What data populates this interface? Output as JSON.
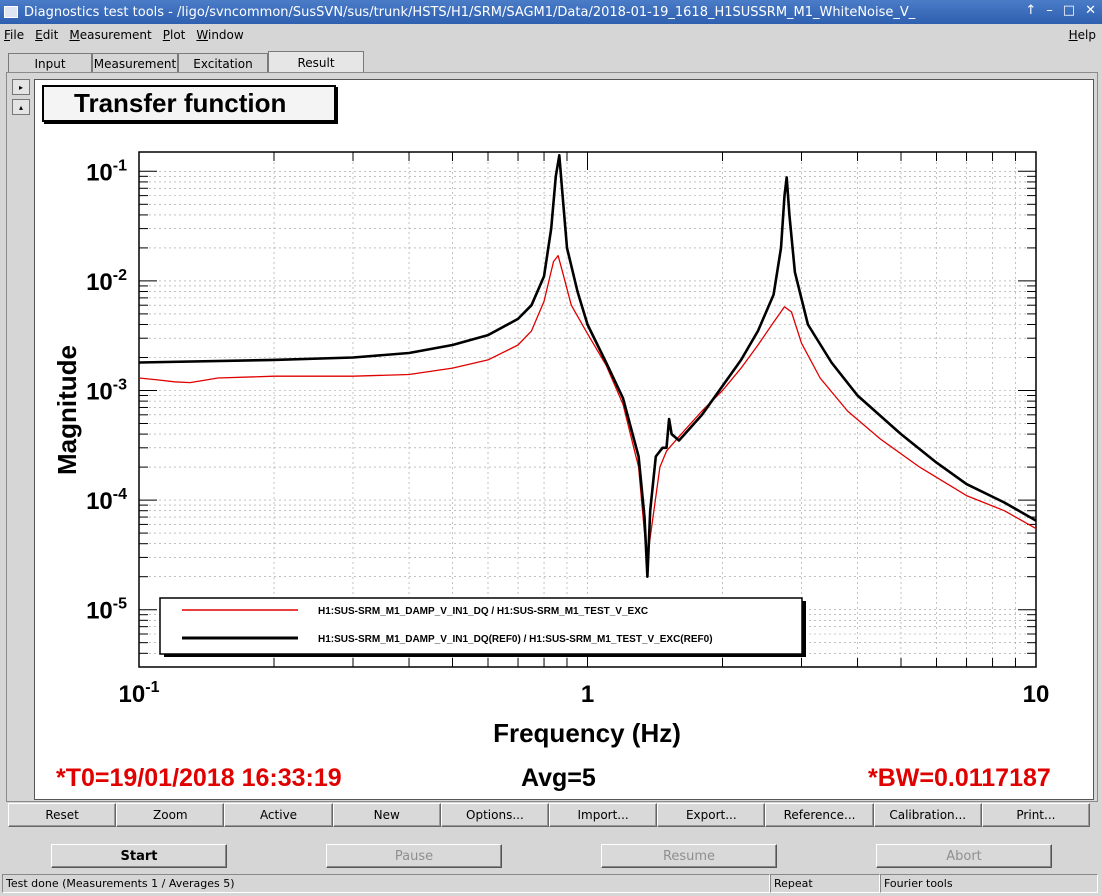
{
  "window": {
    "title": "Diagnostics test tools - /ligo/svncommon/SusSVN/sus/trunk/HSTS/H1/SRM/SAGM1/Data/2018-01-19_1618_H1SUSSRM_M1_WhiteNoise_V_",
    "btn_up": "↑",
    "btn_min": "–",
    "btn_max": "□",
    "btn_close": "✕"
  },
  "menu": {
    "items": [
      {
        "u": "F",
        "rest": "ile"
      },
      {
        "u": "E",
        "rest": "dit"
      },
      {
        "u": "M",
        "rest": "easurement"
      },
      {
        "u": "P",
        "rest": "lot"
      },
      {
        "u": "W",
        "rest": "indow"
      }
    ],
    "help_u": "H",
    "help_rest": "elp"
  },
  "tabs": [
    "Input",
    "Measurement",
    "Excitation",
    "Result"
  ],
  "active_tab": "Result",
  "side_buttons": {
    "expand": "▸",
    "collapse": "▴"
  },
  "plot": {
    "title": "Transfer function",
    "legend": [
      "H1:SUS-SRM_M1_DAMP_V_IN1_DQ / H1:SUS-SRM_M1_TEST_V_EXC",
      "H1:SUS-SRM_M1_DAMP_V_IN1_DQ(REF0) / H1:SUS-SRM_M1_TEST_V_EXC(REF0)"
    ]
  },
  "chart_data": {
    "type": "line",
    "title": "Transfer function",
    "xlabel": "Frequency (Hz)",
    "ylabel": "Magnitude",
    "xscale": "log",
    "yscale": "log",
    "xlim": [
      0.1,
      10
    ],
    "ylim": [
      3e-06,
      0.15
    ],
    "grid": true,
    "legend_position": "bottom-left",
    "x_ticks": [
      {
        "base": "10",
        "exp": "-1"
      },
      {
        "base": "1",
        "exp": ""
      },
      {
        "base": "10",
        "exp": ""
      }
    ],
    "y_ticks": [
      {
        "base": "10",
        "exp": "-1",
        "value": 0.1
      },
      {
        "base": "10",
        "exp": "-2",
        "value": 0.01
      },
      {
        "base": "10",
        "exp": "-3",
        "value": 0.001
      },
      {
        "base": "10",
        "exp": "-4",
        "value": 0.0001
      },
      {
        "base": "10",
        "exp": "-5",
        "value": 1e-05
      }
    ],
    "series": [
      {
        "name": "H1:SUS-SRM_M1_DAMP_V_IN1_DQ / H1:SUS-SRM_M1_TEST_V_EXC",
        "color": "#e00000",
        "x": [
          0.1,
          0.11,
          0.12,
          0.13,
          0.15,
          0.2,
          0.3,
          0.4,
          0.5,
          0.6,
          0.7,
          0.75,
          0.8,
          0.84,
          0.86,
          0.88,
          0.92,
          1.0,
          1.1,
          1.2,
          1.3,
          1.34,
          1.36,
          1.4,
          1.45,
          1.5,
          1.6,
          1.8,
          2.0,
          2.2,
          2.4,
          2.6,
          2.75,
          2.85,
          3.0,
          3.3,
          3.8,
          4.5,
          5.5,
          7.0,
          8.5,
          10.0
        ],
        "y": [
          0.0013,
          0.00125,
          0.0012,
          0.00118,
          0.0013,
          0.00135,
          0.00135,
          0.0014,
          0.0016,
          0.0019,
          0.0026,
          0.0035,
          0.0065,
          0.015,
          0.017,
          0.012,
          0.006,
          0.0033,
          0.0017,
          0.00075,
          0.0002,
          5e-05,
          3e-05,
          7e-05,
          0.0002,
          0.00028,
          0.00038,
          0.00065,
          0.001,
          0.0016,
          0.0026,
          0.0042,
          0.0058,
          0.0052,
          0.0027,
          0.0013,
          0.00065,
          0.00036,
          0.0002,
          0.00011,
          8e-05,
          5.5e-05
        ]
      },
      {
        "name": "H1:SUS-SRM_M1_DAMP_V_IN1_DQ(REF0) / H1:SUS-SRM_M1_TEST_V_EXC(REF0)",
        "color": "#000000",
        "x": [
          0.1,
          0.2,
          0.3,
          0.4,
          0.5,
          0.6,
          0.7,
          0.75,
          0.8,
          0.83,
          0.85,
          0.865,
          0.88,
          0.9,
          0.95,
          1.0,
          1.1,
          1.2,
          1.3,
          1.34,
          1.36,
          1.38,
          1.42,
          1.47,
          1.5,
          1.52,
          1.54,
          1.6,
          1.8,
          2.0,
          2.2,
          2.4,
          2.6,
          2.7,
          2.75,
          2.78,
          2.82,
          2.9,
          3.1,
          3.5,
          4.0,
          5.0,
          6.0,
          7.0,
          8.5,
          10.0
        ],
        "y": [
          0.0018,
          0.0019,
          0.002,
          0.0022,
          0.0026,
          0.0032,
          0.0045,
          0.006,
          0.011,
          0.03,
          0.09,
          0.14,
          0.06,
          0.02,
          0.008,
          0.004,
          0.0018,
          0.00085,
          0.00025,
          7e-05,
          2e-05,
          8e-05,
          0.00025,
          0.0003,
          0.0003,
          0.00055,
          0.0004,
          0.00035,
          0.0006,
          0.0011,
          0.0019,
          0.0035,
          0.0075,
          0.02,
          0.06,
          0.088,
          0.04,
          0.012,
          0.004,
          0.0018,
          0.0009,
          0.0004,
          0.00022,
          0.00014,
          9.5e-05,
          6.5e-05
        ]
      }
    ]
  },
  "info": {
    "t0": "*T0=19/01/2018 16:33:19",
    "avg": "Avg=5",
    "bw": "*BW=0.0117187"
  },
  "toolbar": [
    "Reset",
    "Zoom",
    "Active",
    "New",
    "Options...",
    "Import...",
    "Export...",
    "Reference...",
    "Calibration...",
    "Print..."
  ],
  "run_buttons": {
    "start": "Start",
    "pause": "Pause",
    "resume": "Resume",
    "abort": "Abort"
  },
  "status": {
    "main": "Test done (Measurements 1 / Averages 5)",
    "repeat": "Repeat",
    "tools": "Fourier tools"
  }
}
